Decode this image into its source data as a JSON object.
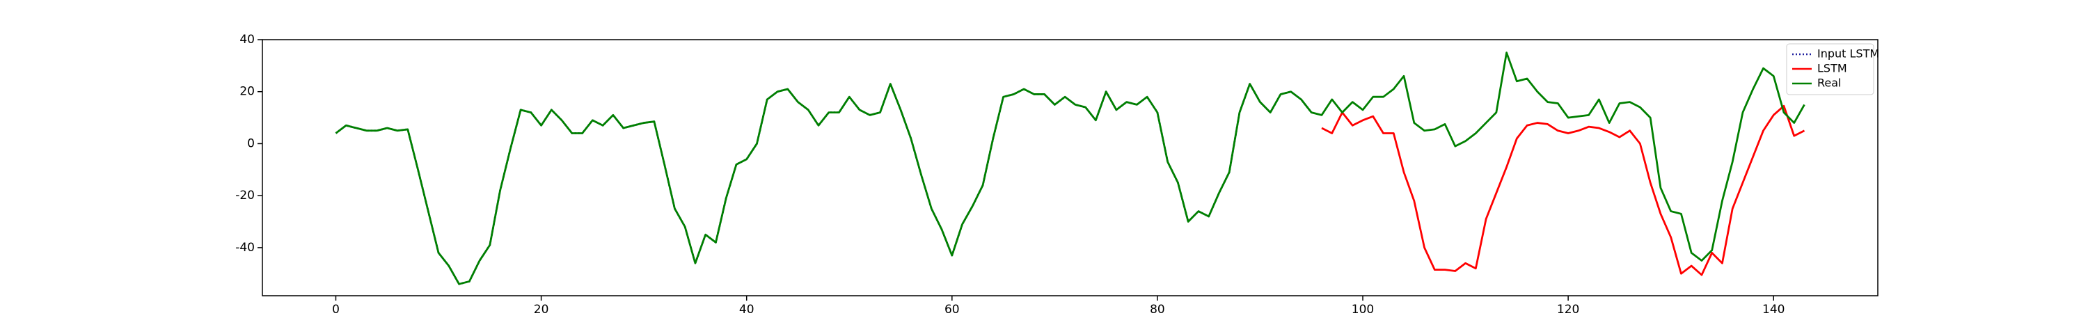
{
  "chart_data": {
    "type": "line",
    "xlim": [
      -7.15,
      150.15
    ],
    "ylim": [
      -58.5,
      40
    ],
    "xticks": [
      0,
      20,
      40,
      60,
      80,
      100,
      120,
      140
    ],
    "yticks": [
      -40,
      -20,
      0,
      20,
      40
    ],
    "legend": "upper right",
    "series": [
      {
        "name": "Input LSTM",
        "color": "#1f1f9f",
        "dash": "dotted",
        "x": [
          0,
          1,
          2,
          3,
          4,
          5,
          6,
          7,
          8,
          9,
          10,
          11,
          12,
          13,
          14,
          15,
          16,
          17,
          18,
          19,
          20,
          21,
          22,
          23,
          24,
          25,
          26,
          27,
          28,
          29,
          30,
          31,
          32,
          33,
          34,
          35,
          36,
          37,
          38,
          39,
          40,
          41,
          42,
          43,
          44,
          45,
          46,
          47,
          48,
          49,
          50,
          51,
          52,
          53,
          54,
          55,
          56,
          57,
          58,
          59,
          60,
          61,
          62,
          63,
          64,
          65,
          66,
          67,
          68,
          69,
          70,
          71,
          72,
          73,
          74,
          75,
          76,
          77,
          78,
          79,
          80,
          81,
          82,
          83,
          84,
          85,
          86,
          87,
          88,
          89,
          90,
          91,
          92,
          93,
          94,
          95
        ],
        "values": [
          4,
          7,
          6,
          5,
          5,
          6,
          5,
          5.5,
          -10,
          -26,
          -42,
          -47,
          -54,
          -53,
          -45,
          -39,
          -18,
          -2,
          13,
          12,
          7,
          13,
          9,
          4,
          4,
          9,
          7,
          11,
          6,
          7,
          8,
          8.5,
          -8,
          -25,
          -32,
          -46,
          -35,
          -38,
          -21,
          -8,
          -6,
          0,
          17,
          20,
          21,
          16,
          13,
          7,
          12,
          12,
          18,
          13,
          11,
          12,
          23,
          13,
          2,
          -12,
          -25,
          -33,
          -43,
          -31,
          -24,
          -16,
          2,
          18,
          19,
          21,
          19,
          19,
          15,
          18,
          15,
          14,
          9,
          20,
          13,
          16,
          15,
          18,
          12,
          -7,
          -15,
          -30,
          -26,
          -28,
          -19,
          -11,
          12,
          23,
          16,
          12,
          19,
          20,
          17,
          12
        ]
      },
      {
        "name": "LSTM",
        "color": "#ff0000",
        "x": [
          96,
          97,
          98,
          99,
          100,
          101,
          102,
          103,
          104,
          105,
          106,
          107,
          108,
          109,
          110,
          111,
          112,
          113,
          114,
          115,
          116,
          117,
          118,
          119,
          120,
          121,
          122,
          123,
          124,
          125,
          126,
          127,
          128,
          129,
          130,
          131,
          132,
          133,
          134,
          135,
          136,
          137,
          138,
          139,
          140,
          141,
          142,
          143
        ],
        "values": [
          6,
          4,
          12,
          7,
          9,
          10.5,
          4,
          4,
          -11,
          -22,
          -40,
          -48.5,
          -48.5,
          -49,
          -46,
          -48,
          -29,
          -19,
          -9,
          2,
          7,
          8,
          7.5,
          5,
          4,
          5,
          6.5,
          6,
          4.5,
          2.5,
          5,
          0,
          -15,
          -27,
          -36,
          -50,
          -47,
          -50.5,
          -42,
          -46,
          -25,
          -15,
          -5,
          5,
          11,
          14.5,
          3,
          5
        ]
      },
      {
        "name": "Real",
        "color": "#008000",
        "x": [
          0,
          1,
          2,
          3,
          4,
          5,
          6,
          7,
          8,
          9,
          10,
          11,
          12,
          13,
          14,
          15,
          16,
          17,
          18,
          19,
          20,
          21,
          22,
          23,
          24,
          25,
          26,
          27,
          28,
          29,
          30,
          31,
          32,
          33,
          34,
          35,
          36,
          37,
          38,
          39,
          40,
          41,
          42,
          43,
          44,
          45,
          46,
          47,
          48,
          49,
          50,
          51,
          52,
          53,
          54,
          55,
          56,
          57,
          58,
          59,
          60,
          61,
          62,
          63,
          64,
          65,
          66,
          67,
          68,
          69,
          70,
          71,
          72,
          73,
          74,
          75,
          76,
          77,
          78,
          79,
          80,
          81,
          82,
          83,
          84,
          85,
          86,
          87,
          88,
          89,
          90,
          91,
          92,
          93,
          94,
          95,
          96,
          97,
          98,
          99,
          100,
          101,
          102,
          103,
          104,
          105,
          106,
          107,
          108,
          109,
          110,
          111,
          112,
          113,
          114,
          115,
          116,
          117,
          118,
          119,
          120,
          121,
          122,
          123,
          124,
          125,
          126,
          127,
          128,
          129,
          130,
          131,
          132,
          133,
          134,
          135,
          136,
          137,
          138,
          139,
          140,
          141,
          142,
          143
        ],
        "values": [
          4,
          7,
          6,
          5,
          5,
          6,
          5,
          5.5,
          -10,
          -26,
          -42,
          -47,
          -54,
          -53,
          -45,
          -39,
          -18,
          -2,
          13,
          12,
          7,
          13,
          9,
          4,
          4,
          9,
          7,
          11,
          6,
          7,
          8,
          8.5,
          -8,
          -25,
          -32,
          -46,
          -35,
          -38,
          -21,
          -8,
          -6,
          0,
          17,
          20,
          21,
          16,
          13,
          7,
          12,
          12,
          18,
          13,
          11,
          12,
          23,
          13,
          2,
          -12,
          -25,
          -33,
          -43,
          -31,
          -24,
          -16,
          2,
          18,
          19,
          21,
          19,
          19,
          15,
          18,
          15,
          14,
          9,
          20,
          13,
          16,
          15,
          18,
          12,
          -7,
          -15,
          -30,
          -26,
          -28,
          -19,
          -11,
          12,
          23,
          16,
          12,
          19,
          20,
          17,
          12,
          11,
          17,
          12,
          16,
          13,
          18,
          18,
          21,
          26,
          8,
          5,
          5.5,
          7.5,
          -1,
          1,
          4,
          8,
          12,
          35,
          24,
          25,
          20,
          16,
          15.5,
          10,
          10.5,
          11,
          17,
          8,
          15.5,
          16,
          14,
          10,
          -17,
          -26,
          -27,
          -42,
          -45,
          -41,
          -22,
          -7,
          12,
          21,
          29,
          26,
          12,
          8,
          15
        ]
      }
    ]
  }
}
